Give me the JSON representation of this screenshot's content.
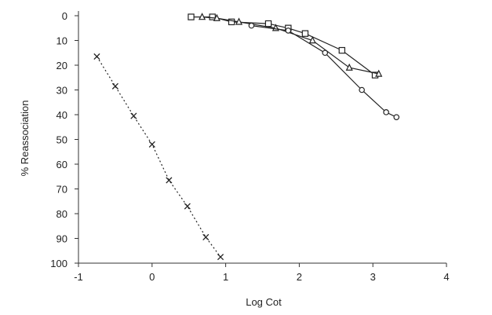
{
  "chart_data": {
    "type": "scatter",
    "title": "",
    "xlabel": "Log Cot",
    "ylabel": "% Reassociation",
    "xlim": [
      -1,
      4
    ],
    "ylim": [
      0,
      100
    ],
    "y_inverted": true,
    "x_ticks": [
      "-1",
      "0",
      "1",
      "2",
      "3",
      "4"
    ],
    "y_ticks": [
      "0",
      "10",
      "20",
      "30",
      "40",
      "50",
      "60",
      "70",
      "80",
      "90",
      "100"
    ],
    "grid": false,
    "legend": "none",
    "series": [
      {
        "marker": "x",
        "line": "dotted",
        "x": [
          -0.75,
          -0.5,
          -0.25,
          0.0,
          0.23,
          0.48,
          0.73,
          0.93
        ],
        "y": [
          16.5,
          28.5,
          40.5,
          52.0,
          66.5,
          77.0,
          89.5,
          97.5
        ]
      },
      {
        "marker": "square",
        "line": "solid",
        "x": [
          0.53,
          0.82,
          1.08,
          1.58,
          1.85,
          2.08,
          2.58,
          3.03
        ],
        "y": [
          0.5,
          0.5,
          2.5,
          3.2,
          5.0,
          7.2,
          14.0,
          24.0
        ]
      },
      {
        "marker": "triangle",
        "line": "solid",
        "x": [
          0.68,
          0.88,
          1.18,
          1.68,
          2.18,
          2.68,
          3.08
        ],
        "y": [
          0.5,
          1.0,
          2.5,
          5.0,
          10.0,
          21.0,
          23.5
        ]
      },
      {
        "marker": "circle",
        "line": "solid",
        "x": [
          1.35,
          1.85,
          2.35,
          2.85,
          3.18,
          3.32
        ],
        "y": [
          4.0,
          6.0,
          15.0,
          30.0,
          39.0,
          41.0
        ]
      }
    ]
  }
}
